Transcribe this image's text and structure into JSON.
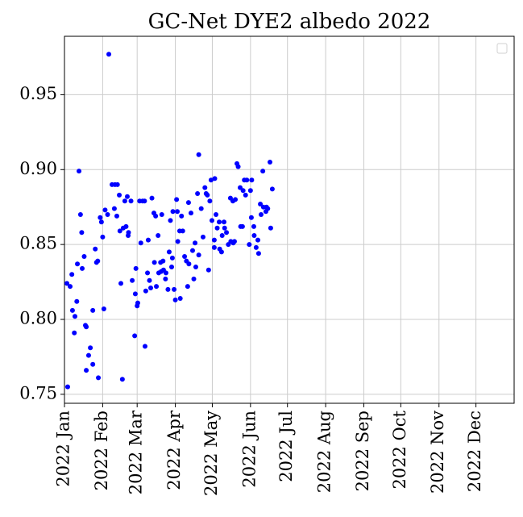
{
  "chart_data": {
    "type": "scatter",
    "title": "GC-Net DYE2 albedo 2022",
    "color": "#0000ff",
    "grid": true,
    "xlim": [
      0,
      365
    ],
    "xticks": [
      {
        "value": 0,
        "label": "2022 Jan"
      },
      {
        "value": 31,
        "label": "2022 Feb"
      },
      {
        "value": 59,
        "label": "2022 Mar"
      },
      {
        "value": 90,
        "label": "2022 Apr"
      },
      {
        "value": 120,
        "label": "2022 May"
      },
      {
        "value": 151,
        "label": "2022 Jun"
      },
      {
        "value": 181,
        "label": "2022 Jul"
      },
      {
        "value": 212,
        "label": "2022 Aug"
      },
      {
        "value": 243,
        "label": "2022 Sep"
      },
      {
        "value": 273,
        "label": "2022 Oct"
      },
      {
        "value": 304,
        "label": "2022 Nov"
      },
      {
        "value": 334,
        "label": "2022 Dec"
      }
    ],
    "ylim": [
      0.744,
      0.989
    ],
    "yticks": [
      0.75,
      {
        "value": 0.8,
        "label": "0.80"
      },
      0.85,
      {
        "value": 0.9,
        "label": "0.90"
      },
      0.95
    ],
    "x": [
      2.6,
      2,
      4.6,
      6,
      6.5,
      8,
      8.5,
      10,
      10.5,
      11.8,
      13,
      14,
      14.4,
      16,
      17,
      17.7,
      17.7,
      19.6,
      21,
      23,
      23,
      25,
      26,
      27,
      27.5,
      29,
      30,
      31,
      32,
      33,
      35,
      36,
      38.6,
      40.5,
      41,
      42.5,
      43,
      44.5,
      45,
      45.8,
      47,
      47.7,
      49,
      50,
      51,
      51.7,
      52,
      54,
      55,
      57,
      57.5,
      58,
      59,
      59.5,
      61,
      62,
      63.4,
      65,
      65.4,
      66,
      67.4,
      68,
      69,
      70,
      71,
      72.6,
      73,
      74,
      74.6,
      76,
      76.5,
      78,
      78.5,
      79,
      80,
      80.4,
      82,
      82.4,
      84,
      85,
      86,
      87,
      87.6,
      88,
      89,
      90,
      91,
      91.6,
      92,
      93.5,
      94,
      95,
      96,
      97.5,
      99,
      100,
      100.7,
      101,
      102.7,
      104,
      105,
      106,
      106.6,
      108,
      109,
      109,
      111,
      112.5,
      114,
      115,
      116,
      117,
      118,
      119,
      119.7,
      121.6,
      121.6,
      122,
      123,
      124,
      125.6,
      126,
      127.5,
      128,
      129.5,
      130,
      131.5,
      133,
      134.7,
      135,
      136.7,
      137,
      138,
      138.7,
      140,
      141,
      142.6,
      143,
      144.5,
      145,
      146,
      147,
      148,
      150,
      151,
      151.7,
      152,
      153.7,
      154,
      155.6,
      157,
      157.6,
      159,
      159.6,
      161,
      161.5,
      163.5,
      164,
      165,
      166.8,
      167.4,
      168.7
    ],
    "values": [
      0.755,
      0.824,
      0.822,
      0.83,
      0.806,
      0.791,
      0.802,
      0.812,
      0.837,
      0.899,
      0.87,
      0.858,
      0.834,
      0.842,
      0.796,
      0.795,
      0.766,
      0.776,
      0.781,
      0.77,
      0.806,
      0.847,
      0.838,
      0.839,
      0.761,
      0.868,
      0.865,
      0.855,
      0.807,
      0.873,
      0.87,
      0.977,
      0.89,
      0.874,
      0.89,
      0.869,
      0.89,
      0.883,
      0.859,
      0.824,
      0.76,
      0.861,
      0.879,
      0.862,
      0.882,
      0.856,
      0.858,
      0.879,
      0.826,
      0.789,
      0.817,
      0.834,
      0.809,
      0.811,
      0.879,
      0.851,
      0.879,
      0.879,
      0.782,
      0.819,
      0.831,
      0.853,
      0.826,
      0.821,
      0.881,
      0.871,
      0.838,
      0.869,
      0.822,
      0.856,
      0.831,
      0.838,
      0.832,
      0.87,
      0.839,
      0.833,
      0.827,
      0.831,
      0.82,
      0.845,
      0.866,
      0.835,
      0.841,
      0.872,
      0.82,
      0.813,
      0.88,
      0.872,
      0.852,
      0.859,
      0.814,
      0.869,
      0.859,
      0.842,
      0.839,
      0.822,
      0.878,
      0.837,
      0.871,
      0.846,
      0.827,
      0.851,
      0.835,
      0.884,
      0.843,
      0.91,
      0.874,
      0.855,
      0.888,
      0.884,
      0.883,
      0.833,
      0.879,
      0.893,
      0.866,
      0.853,
      0.848,
      0.894,
      0.87,
      0.861,
      0.865,
      0.847,
      0.845,
      0.856,
      0.865,
      0.861,
      0.858,
      0.85,
      0.881,
      0.852,
      0.879,
      0.851,
      0.852,
      0.88,
      0.904,
      0.902,
      0.888,
      0.862,
      0.862,
      0.886,
      0.893,
      0.883,
      0.893,
      0.85,
      0.886,
      0.868,
      0.893,
      0.862,
      0.856,
      0.848,
      0.853,
      0.844,
      0.877,
      0.87,
      0.899,
      0.875,
      0.872,
      0.875,
      0.874,
      0.905,
      0.861,
      0.887
    ]
  }
}
